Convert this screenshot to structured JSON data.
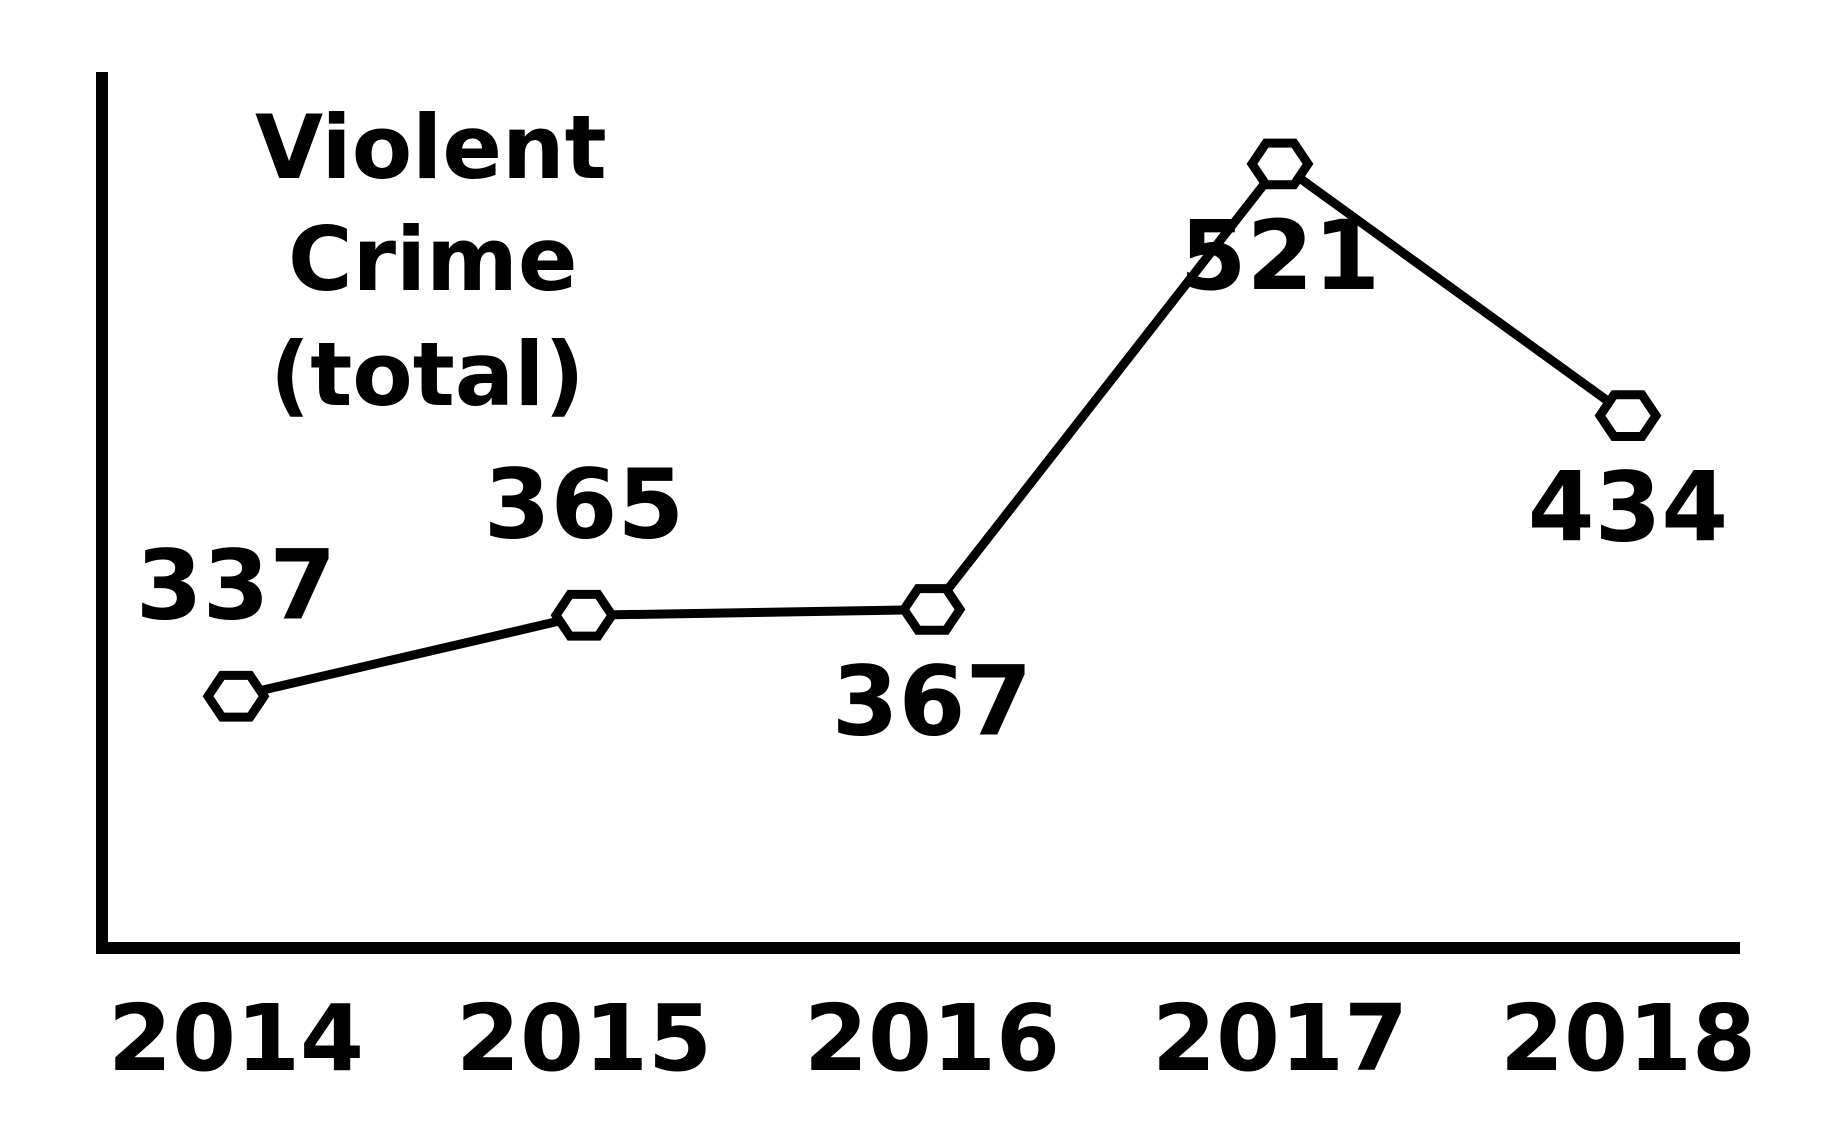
{
  "chart_data": {
    "type": "line",
    "title_lines": [
      "Violent",
      "Crime",
      "(total)"
    ],
    "categories": [
      "2014",
      "2015",
      "2016",
      "2017",
      "2018"
    ],
    "series": [
      {
        "values": [
          337,
          365,
          367,
          521,
          434
        ]
      }
    ],
    "ylim": [
      250,
      550
    ],
    "grid": false,
    "legend": "none",
    "marker": "hexagon",
    "data_label_position": [
      "above",
      "above",
      "below",
      "below",
      "below"
    ],
    "colors": {
      "line": "#000000",
      "marker_fill": "#ffffff",
      "text": "#000000",
      "background": "#ffffff"
    }
  }
}
